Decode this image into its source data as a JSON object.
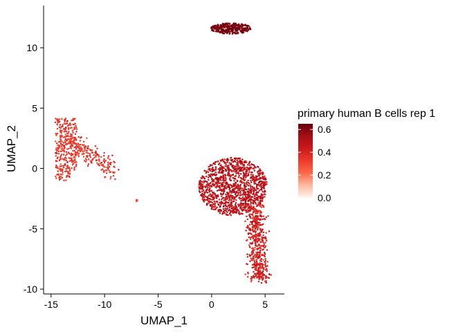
{
  "chart_data": {
    "type": "scatter",
    "title": "",
    "xlabel": "UMAP_1",
    "ylabel": "UMAP_2",
    "xlim": [
      -15.7,
      6.8
    ],
    "ylim": [
      -10.4,
      13.5
    ],
    "x_ticks": [
      -15,
      -10,
      -5,
      0,
      5
    ],
    "x_tick_labels": [
      "-15",
      "-10",
      "-5",
      "0",
      "5"
    ],
    "y_ticks": [
      -10,
      -5,
      0,
      5,
      10
    ],
    "y_tick_labels": [
      "-10",
      "-5",
      "0",
      "5",
      "10"
    ],
    "grid": false,
    "legend": {
      "title": "primary human B cells rep 1",
      "placement": "right",
      "type": "colorbar",
      "min": 0.0,
      "max": 0.65,
      "ticks": [
        0.0,
        0.2,
        0.4,
        0.6
      ],
      "tick_labels": [
        "0.0",
        "0.2",
        "0.4",
        "0.6"
      ],
      "colors": [
        "#fff5f0",
        "#fcbba1",
        "#fb6a4a",
        "#ef3b2c",
        "#cb181d",
        "#a50f15",
        "#67000d"
      ]
    },
    "clusters": [
      {
        "label": "top-right cluster",
        "center": [
          1.8,
          11.6
        ],
        "spread": [
          1.9,
          0.45
        ],
        "shape": "ellipse",
        "n": 300,
        "value_mean": 0.62,
        "value_sd": 0.02
      },
      {
        "label": "left cluster",
        "region": "triangle",
        "vertices": [
          [
            -14.6,
            4.0
          ],
          [
            -13.0,
            4.5
          ],
          [
            -9.2,
            -0.2
          ],
          [
            -14.5,
            -1.7
          ]
        ],
        "n": 520,
        "value_mean": 0.33,
        "value_sd": 0.04
      },
      {
        "label": "small isolated group",
        "center": [
          -7.0,
          -2.6
        ],
        "spread": [
          0.1,
          0.15
        ],
        "shape": "ellipse",
        "n": 6,
        "value_mean": 0.3,
        "value_sd": 0.02
      },
      {
        "label": "bottom-right cluster upper body",
        "center": [
          2.0,
          -1.5
        ],
        "spread": [
          3.2,
          2.4
        ],
        "shape": "ellipse",
        "n": 1250,
        "value_mean": 0.47,
        "value_sd": 0.05
      },
      {
        "label": "bottom-right cluster tail",
        "region": "tail",
        "from": [
          4.0,
          -3.0
        ],
        "to": [
          4.5,
          -9.2
        ],
        "width": 1.0,
        "n": 520,
        "value_mean": 0.4,
        "value_sd": 0.05
      }
    ]
  }
}
